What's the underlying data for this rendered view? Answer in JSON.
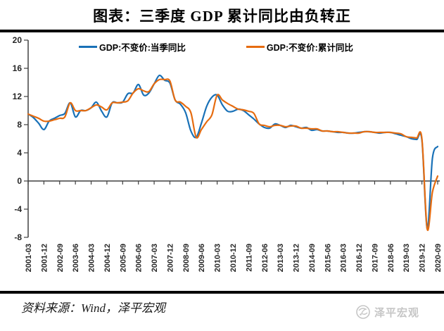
{
  "header": {
    "title": "图表：三季度 GDP 累计同比由负转正"
  },
  "legend": {
    "items": [
      {
        "label": "GDP:不变价:当季同比",
        "color": "#1971B7"
      },
      {
        "label": "GDP:不变价:累计同比",
        "color": "#E66C10"
      }
    ]
  },
  "footer": {
    "source": "资料来源：Wind，泽平宏观",
    "watermark": "泽平宏观"
  },
  "colors": {
    "axis": "#404040",
    "tick_label": "#262626",
    "series_quarterly": "#1971B7",
    "series_cumulative": "#E66C10"
  },
  "chart_data": {
    "type": "line",
    "title": "图表：三季度 GDP 累计同比由负转正",
    "xlabel": "",
    "ylabel": "",
    "ylim": [
      -8,
      20
    ],
    "y_ticks": [
      20,
      16,
      12,
      8,
      4,
      0,
      -4,
      -8
    ],
    "grid": false,
    "legend_position": "top",
    "x": [
      "2001-03",
      "2001-06",
      "2001-09",
      "2001-12",
      "2002-03",
      "2002-06",
      "2002-09",
      "2002-12",
      "2003-03",
      "2003-06",
      "2003-09",
      "2003-12",
      "2004-03",
      "2004-06",
      "2004-09",
      "2004-12",
      "2005-03",
      "2005-06",
      "2005-09",
      "2005-12",
      "2006-03",
      "2006-06",
      "2006-09",
      "2006-12",
      "2007-03",
      "2007-06",
      "2007-09",
      "2007-12",
      "2008-03",
      "2008-06",
      "2008-09",
      "2008-12",
      "2009-03",
      "2009-06",
      "2009-09",
      "2009-12",
      "2010-03",
      "2010-06",
      "2010-09",
      "2010-12",
      "2011-03",
      "2011-06",
      "2011-09",
      "2011-12",
      "2012-03",
      "2012-06",
      "2012-09",
      "2012-12",
      "2013-03",
      "2013-06",
      "2013-09",
      "2013-12",
      "2014-03",
      "2014-06",
      "2014-09",
      "2014-12",
      "2015-03",
      "2015-06",
      "2015-09",
      "2015-12",
      "2016-03",
      "2016-06",
      "2016-09",
      "2016-12",
      "2017-03",
      "2017-06",
      "2017-09",
      "2017-12",
      "2018-03",
      "2018-06",
      "2018-09",
      "2018-12",
      "2019-03",
      "2019-06",
      "2019-09",
      "2019-12",
      "2020-03",
      "2020-06",
      "2020-09"
    ],
    "x_tick_labels": [
      "2001-03",
      "2001-12",
      "2002-09",
      "2003-06",
      "2004-03",
      "2004-12",
      "2005-09",
      "2006-06",
      "2007-03",
      "2007-12",
      "2008-09",
      "2009-06",
      "2010-03",
      "2010-12",
      "2011-09",
      "2012-06",
      "2013-03",
      "2013-12",
      "2014-09",
      "2015-06",
      "2016-03",
      "2016-12",
      "2017-09",
      "2018-06",
      "2019-03",
      "2019-12",
      "2020-09"
    ],
    "x_tick_every": 3,
    "series": [
      {
        "name": "GDP:不变价:当季同比",
        "color": "#1971B7",
        "values": [
          9.5,
          9.0,
          8.2,
          7.3,
          8.5,
          8.9,
          9.3,
          9.6,
          11.1,
          9.1,
          10.0,
          10.0,
          10.4,
          11.2,
          9.9,
          9.1,
          11.1,
          11.1,
          11.2,
          12.4,
          12.5,
          13.7,
          12.2,
          12.5,
          13.8,
          15.0,
          14.3,
          13.9,
          11.5,
          10.9,
          9.7,
          7.1,
          6.2,
          8.2,
          10.6,
          11.9,
          12.2,
          10.8,
          9.9,
          9.9,
          10.2,
          10.0,
          9.4,
          8.8,
          8.1,
          7.6,
          7.5,
          8.1,
          7.9,
          7.6,
          7.9,
          7.7,
          7.5,
          7.6,
          7.2,
          7.3,
          7.1,
          7.1,
          7.0,
          6.9,
          6.9,
          6.8,
          6.8,
          6.9,
          7.0,
          7.0,
          6.9,
          6.8,
          6.9,
          6.9,
          6.7,
          6.5,
          6.3,
          6.0,
          5.9,
          5.8,
          -6.8,
          3.2,
          4.9
        ]
      },
      {
        "name": "GDP:不变价:累计同比",
        "color": "#E66C10",
        "values": [
          9.5,
          9.2,
          8.9,
          8.5,
          8.5,
          8.7,
          8.9,
          9.1,
          11.1,
          10.0,
          10.0,
          10.0,
          10.4,
          10.8,
          10.5,
          10.1,
          11.1,
          11.1,
          11.2,
          11.4,
          12.5,
          13.1,
          12.8,
          12.7,
          13.8,
          14.4,
          14.4,
          14.2,
          11.5,
          11.2,
          10.6,
          9.7,
          6.2,
          7.3,
          8.4,
          9.4,
          12.2,
          11.5,
          11.0,
          10.6,
          10.2,
          10.1,
          9.9,
          9.6,
          8.1,
          7.9,
          7.7,
          7.9,
          7.9,
          7.7,
          7.8,
          7.8,
          7.5,
          7.5,
          7.4,
          7.4,
          7.1,
          7.1,
          7.0,
          7.0,
          6.9,
          6.8,
          6.8,
          6.8,
          7.0,
          7.0,
          6.9,
          6.9,
          6.9,
          6.9,
          6.8,
          6.7,
          6.3,
          6.2,
          6.1,
          6.0,
          -6.8,
          -1.6,
          0.7
        ]
      }
    ]
  }
}
